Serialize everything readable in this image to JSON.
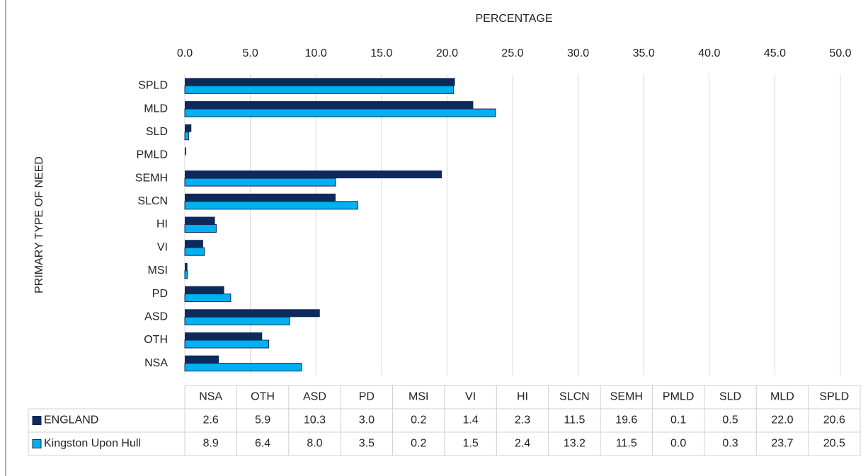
{
  "chart_data": {
    "type": "bar",
    "orientation": "horizontal",
    "x_label": "PERCENTAGE",
    "y_label": "PRIMARY TYPE OF NEED",
    "categories": [
      "NSA",
      "OTH",
      "ASD",
      "PD",
      "MSI",
      "VI",
      "HI",
      "SLCN",
      "SEMH",
      "PMLD",
      "SLD",
      "MLD",
      "SPLD"
    ],
    "series": [
      {
        "name": "ENGLAND",
        "color": "#0e2a5c",
        "values": [
          2.6,
          5.9,
          10.3,
          3.0,
          0.2,
          1.4,
          2.3,
          11.5,
          19.6,
          0.1,
          0.5,
          22.0,
          20.6
        ],
        "value_labels": [
          "2.6",
          "5.9",
          "10.3",
          "3.0",
          "0.2",
          "1.4",
          "2.3",
          "11.5",
          "19.6",
          "0.1",
          "0.5",
          "22.0",
          "20.6"
        ]
      },
      {
        "name": "Kingston Upon Hull",
        "color": "#00b0f0",
        "values": [
          8.9,
          6.4,
          8.0,
          3.5,
          0.2,
          1.5,
          2.4,
          13.2,
          11.5,
          0.0,
          0.3,
          23.7,
          20.5
        ],
        "value_labels": [
          "8.9",
          "6.4",
          "8.0",
          "3.5",
          "0.2",
          "1.5",
          "2.4",
          "13.2",
          "11.5",
          "0.0",
          "0.3",
          "23.7",
          "20.5"
        ]
      }
    ],
    "xlim": [
      0,
      50
    ],
    "xticks": [
      {
        "value": 0,
        "label": "0.0"
      },
      {
        "value": 5,
        "label": "5.0"
      },
      {
        "value": 10,
        "label": "10.0"
      },
      {
        "value": 15,
        "label": "15.0"
      },
      {
        "value": 20,
        "label": "20.0"
      },
      {
        "value": 25,
        "label": "25.0"
      },
      {
        "value": 30,
        "label": "30.0"
      },
      {
        "value": 35,
        "label": "35.0"
      },
      {
        "value": 40,
        "label": "40.0"
      },
      {
        "value": 45,
        "label": "45.0"
      },
      {
        "value": 50,
        "label": "50.0"
      }
    ],
    "grid": true,
    "data_table": true
  }
}
